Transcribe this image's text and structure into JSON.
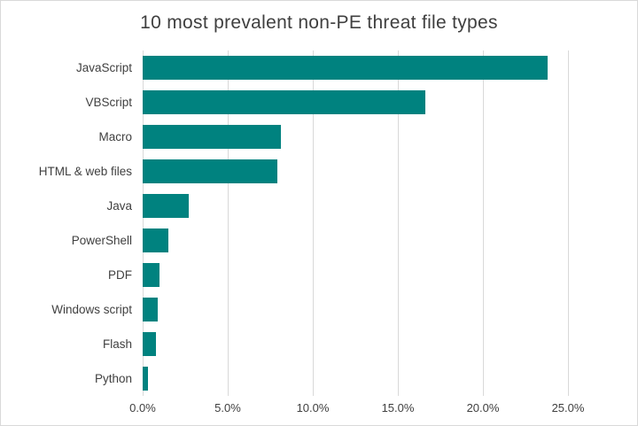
{
  "chart_data": {
    "type": "bar",
    "orientation": "horizontal",
    "title": "10 most prevalent non-PE threat file types",
    "categories": [
      "JavaScript",
      "VBScript",
      "Macro",
      "HTML & web files",
      "Java",
      "PowerShell",
      "PDF",
      "Windows script",
      "Flash",
      "Python"
    ],
    "values": [
      23.8,
      16.6,
      8.1,
      7.9,
      2.7,
      1.5,
      1.0,
      0.9,
      0.8,
      0.3
    ],
    "unit": "percent",
    "xlabel": "",
    "ylabel": "",
    "xlim": [
      0,
      25
    ],
    "x_ticks": [
      "0.0%",
      "5.0%",
      "10.0%",
      "15.0%",
      "20.0%",
      "25.0%"
    ],
    "grid": true,
    "legend": false
  },
  "colors": {
    "bar": "#00827F",
    "gridline": "#D9D9D9",
    "border": "#D9D9D9",
    "title_text": "#3F3F3F",
    "axis_text": "#404040",
    "background": "#FFFFFF"
  }
}
